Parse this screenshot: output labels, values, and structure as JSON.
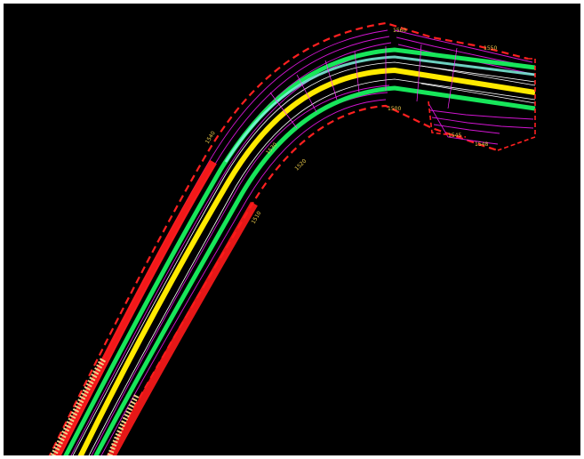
{
  "drawing": {
    "background": "#000000",
    "frame": "#ffffff",
    "road": {
      "center_line_color": "#ffea00",
      "lane_edge_color": "#17e65a",
      "shoulder_color": "#ff1a1a",
      "paving_color": "#eecf8a",
      "contour_color": "#d215d2",
      "contour_accent_color": "#ff2aff",
      "boundary_color": "#ff2020",
      "tick_color": "#ffffff",
      "cyan_strip_color": "#7ff5e0"
    },
    "labels": [
      {
        "id": "elev-1",
        "text": "1560"
      },
      {
        "id": "elev-2",
        "text": "1550"
      },
      {
        "id": "elev-3",
        "text": "1540"
      },
      {
        "id": "elev-4",
        "text": "1530"
      },
      {
        "id": "elev-5",
        "text": "1520"
      },
      {
        "id": "elev-6",
        "text": "1510"
      },
      {
        "id": "elev-7",
        "text": "1500"
      },
      {
        "id": "elev-8",
        "text": "1545"
      },
      {
        "id": "elev-9",
        "text": "1548"
      }
    ]
  }
}
